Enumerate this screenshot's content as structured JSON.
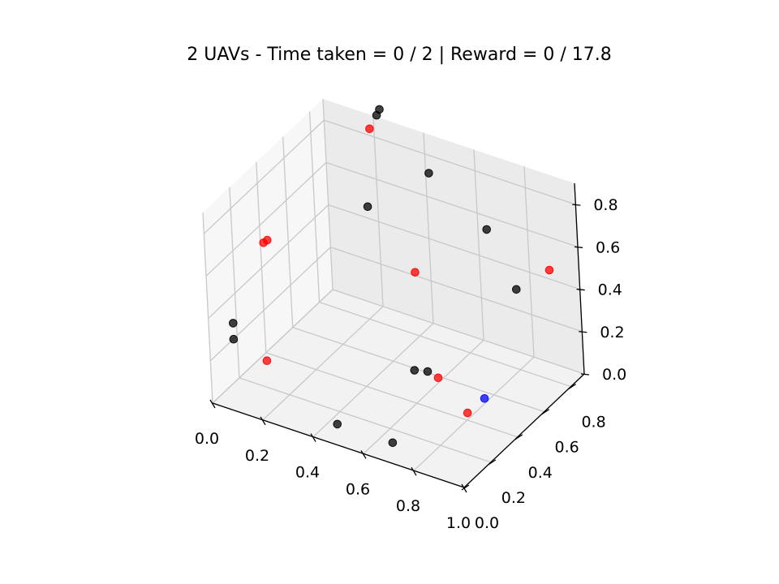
{
  "chart_data": {
    "type": "scatter",
    "title": "2 UAVs - Time taken = 0 / 2 | Reward = 0 / 17.8",
    "projection": "3d",
    "grid": true,
    "legend": "none",
    "xlim": [
      0,
      1.0
    ],
    "ylim": [
      0,
      0.9
    ],
    "zlim": [
      0,
      0.9
    ],
    "x_ticks": [
      "0.0",
      "0.2",
      "0.4",
      "0.6",
      "0.8",
      "1.0"
    ],
    "y_ticks": [
      "0.0",
      "0.2",
      "0.4",
      "0.6",
      "0.8"
    ],
    "z_ticks": [
      "0.0",
      "0.2",
      "0.4",
      "0.6",
      "0.8"
    ],
    "colors": {
      "red": "#ff0000",
      "black": "#000000",
      "blue": "#0000ff",
      "green": "#00aa00"
    },
    "series": [
      {
        "color": "#ff0000",
        "points": [
          {
            "x": 0.12,
            "y": 0.21,
            "z": 0.68
          },
          {
            "x": 0.13,
            "y": 0.22,
            "z": 0.69
          },
          {
            "x": 0.2,
            "y": 0.05,
            "z": 0.25
          },
          {
            "x": 0.25,
            "y": 0.78,
            "z": 0.93
          },
          {
            "x": 0.68,
            "y": 0.42,
            "z": 0.14
          },
          {
            "x": 0.82,
            "y": 0.37,
            "z": 0.06
          },
          {
            "x": 0.92,
            "y": 0.83,
            "z": 0.5
          },
          {
            "x": 0.45,
            "y": 0.7,
            "z": 0.38
          }
        ]
      },
      {
        "color": "#000000",
        "points": [
          {
            "x": 0.07,
            "y": 0.05,
            "z": 0.3
          },
          {
            "x": 0.06,
            "y": 0.07,
            "z": 0.36
          },
          {
            "x": 0.3,
            "y": 0.65,
            "z": 0.66
          },
          {
            "x": 0.27,
            "y": 0.8,
            "z": 0.99
          },
          {
            "x": 0.26,
            "y": 0.84,
            "z": 0.99
          },
          {
            "x": 0.52,
            "y": 0.71,
            "z": 0.87
          },
          {
            "x": 0.72,
            "y": 0.75,
            "z": 0.66
          },
          {
            "x": 0.89,
            "y": 0.64,
            "z": 0.51
          },
          {
            "x": 0.58,
            "y": 0.43,
            "z": 0.13
          },
          {
            "x": 0.5,
            "y": 0.0,
            "z": 0.1
          },
          {
            "x": 0.72,
            "y": 0.0,
            "z": 0.1
          },
          {
            "x": 0.65,
            "y": 0.4,
            "z": 0.17
          }
        ]
      },
      {
        "color": "#0000ff",
        "points": [
          {
            "x": 0.88,
            "y": 0.39,
            "z": 0.14
          }
        ]
      }
    ]
  }
}
